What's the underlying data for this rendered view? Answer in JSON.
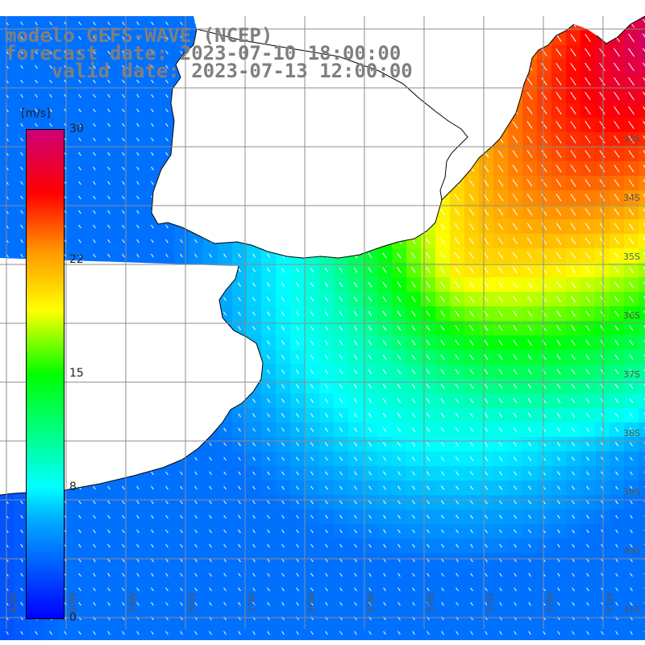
{
  "title": {
    "model": "modelo GEFS-WAVE (NCEP)",
    "forecast": "forecast date: 2023-07-10 18:00:00",
    "valid": "    valid date: 2023-07-13 12:00:00"
  },
  "legend": {
    "unit": "[m/s]",
    "ticks": [
      "30",
      "22",
      "15",
      "8",
      "0"
    ],
    "tick_values": [
      30,
      22,
      15,
      8,
      0
    ],
    "min": 0,
    "max": 30,
    "colors": [
      "#0000ff",
      "#00aaff",
      "#00ffff",
      "#00ff00",
      "#ffff00",
      "#ff9900",
      "#ff0000",
      "#cc0077"
    ]
  },
  "axes": {
    "lat_labels": [
      "33S",
      "34S",
      "35S",
      "36S",
      "37S",
      "38S",
      "39S",
      "40S",
      "41S"
    ],
    "lon_labels": [
      "61W",
      "60W",
      "59W",
      "58W",
      "57W",
      "56W",
      "55W",
      "54W",
      "53W",
      "52W",
      "51W"
    ]
  },
  "colors": {
    "land": "#ffffff",
    "coast": "#000000",
    "grid": "#8c8c8c",
    "arrows": "#ffffff",
    "title_text": "#7f7f7f"
  }
}
